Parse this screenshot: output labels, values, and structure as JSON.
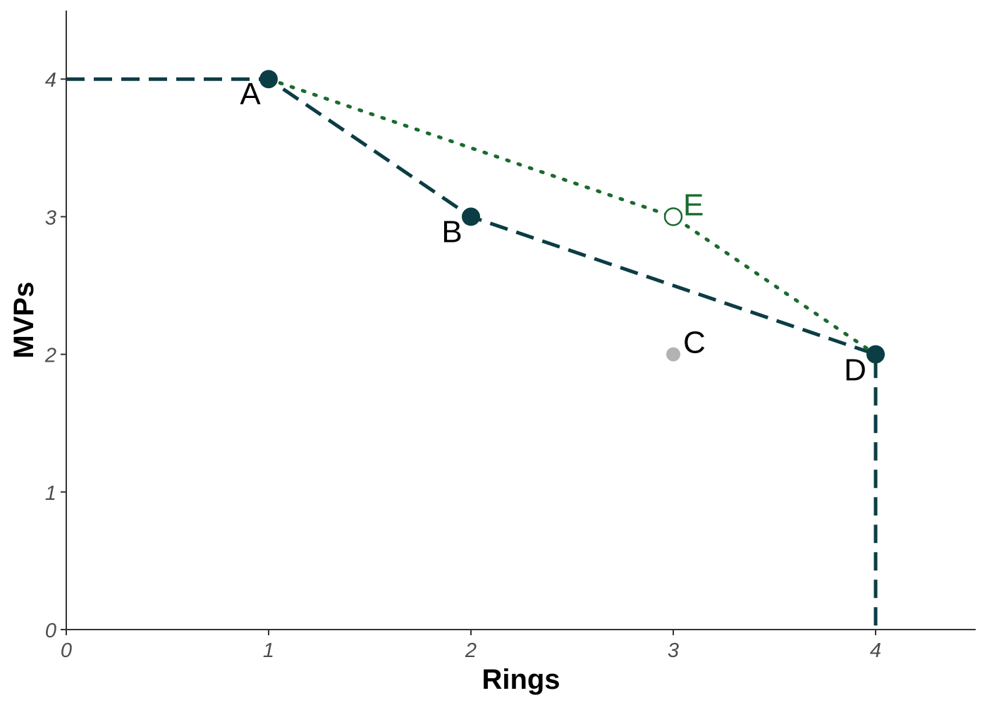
{
  "chart_data": {
    "type": "scatter",
    "xlabel": "Rings",
    "ylabel": "MVPs",
    "xlim": [
      0,
      4.5
    ],
    "ylim": [
      0,
      4.5
    ],
    "x_ticks": [
      "0",
      "1",
      "2",
      "3",
      "4"
    ],
    "y_ticks": [
      "0",
      "1",
      "2",
      "3",
      "4"
    ],
    "grid": false,
    "points": [
      {
        "label": "A",
        "x": 1,
        "y": 4,
        "style": "filled",
        "color": "#0b3d44"
      },
      {
        "label": "B",
        "x": 2,
        "y": 3,
        "style": "filled",
        "color": "#0b3d44"
      },
      {
        "label": "C",
        "x": 3,
        "y": 2,
        "style": "filled",
        "color": "#b3b3b3"
      },
      {
        "label": "D",
        "x": 4,
        "y": 2,
        "style": "filled",
        "color": "#0b3d44"
      },
      {
        "label": "E",
        "x": 3,
        "y": 3,
        "style": "open",
        "color": "#1a6b2e"
      }
    ],
    "lines": [
      {
        "style": "dashed",
        "color": "#0b3d44",
        "points": [
          [
            0,
            4
          ],
          [
            1,
            4
          ],
          [
            2,
            3
          ],
          [
            4,
            2
          ],
          [
            4,
            0
          ]
        ]
      },
      {
        "style": "dotted",
        "color": "#1a6b2e",
        "points": [
          [
            1,
            4
          ],
          [
            3,
            3
          ],
          [
            4,
            2
          ]
        ]
      }
    ],
    "label_colors": {
      "A": "#000000",
      "B": "#000000",
      "C": "#000000",
      "D": "#000000",
      "E": "#1a6b2e"
    }
  }
}
